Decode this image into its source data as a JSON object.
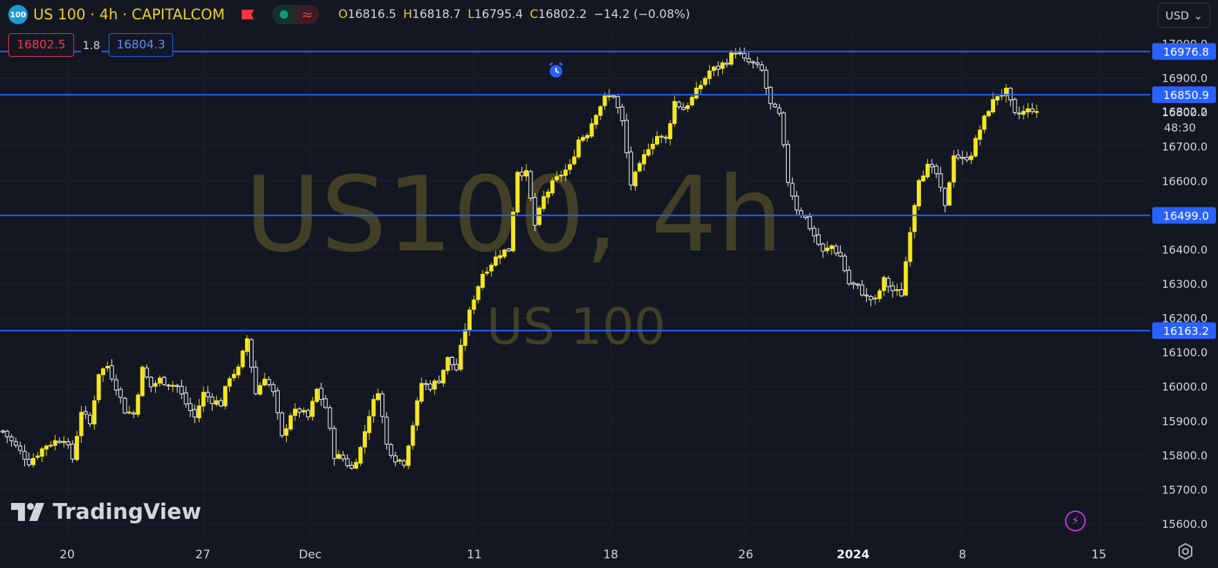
{
  "header": {
    "symbol_badge": "100",
    "title": "US 100 · 4h · CAPITALCOM",
    "ohlc": {
      "o_label": "O",
      "o": "16816.5",
      "h_label": "H",
      "h": "16818.7",
      "l_label": "L",
      "l": "16795.4",
      "c_label": "C",
      "c": "16802.2",
      "change": "−14.2 (−0.08%)"
    },
    "currency": "USD"
  },
  "quote": {
    "bid": "16802.5",
    "spread": "1.8",
    "ask": "16804.3"
  },
  "watermark": {
    "line1": "US100, 4h",
    "line2": "US 100"
  },
  "branding": {
    "logo_text": "TradingView"
  },
  "price_badge": {
    "price": "16802.2",
    "countdown": "48:30"
  },
  "colors": {
    "background": "#131722",
    "bull": "#f5e71f",
    "bear": "#ffffff",
    "hline": "#2962ff",
    "text": "#d1d4dc",
    "grid": "#1e222d"
  },
  "chart_data": {
    "type": "candlestick",
    "title": "US 100",
    "timeframe": "4h",
    "ylim": [
      15550,
      17050
    ],
    "y_ticks": [
      "15600.0",
      "15700.0",
      "15800.0",
      "15900.0",
      "16000.0",
      "16100.0",
      "16200.0",
      "16300.0",
      "16400.0",
      "16500.0",
      "16600.0",
      "16700.0",
      "16800.0",
      "16900.0",
      "17000.0"
    ],
    "x_ticks": [
      {
        "label": "20",
        "bold": false
      },
      {
        "label": "27",
        "bold": false
      },
      {
        "label": "Dec",
        "bold": false
      },
      {
        "label": "11",
        "bold": false
      },
      {
        "label": "18",
        "bold": false
      },
      {
        "label": "26",
        "bold": false
      },
      {
        "label": "2024",
        "bold": true
      },
      {
        "label": "8",
        "bold": false
      },
      {
        "label": "15",
        "bold": false
      }
    ],
    "horizontal_lines": [
      {
        "price": 16976.8,
        "label": "16976.8"
      },
      {
        "price": 16850.9,
        "label": "16850.9"
      },
      {
        "price": 16499.0,
        "label": "16499.0"
      },
      {
        "price": 16163.2,
        "label": "16163.2"
      }
    ],
    "last_price": 16802.2,
    "price_path": [
      [
        0,
        15870
      ],
      [
        6,
        15780
      ],
      [
        10,
        15830
      ],
      [
        14,
        15850
      ],
      [
        16,
        15790
      ],
      [
        18,
        15930
      ],
      [
        20,
        15890
      ],
      [
        22,
        16040
      ],
      [
        24,
        16060
      ],
      [
        26,
        16000
      ],
      [
        28,
        15930
      ],
      [
        30,
        15920
      ],
      [
        32,
        16050
      ],
      [
        34,
        16000
      ],
      [
        36,
        16020
      ],
      [
        38,
        16010
      ],
      [
        40,
        16000
      ],
      [
        42,
        15950
      ],
      [
        44,
        15910
      ],
      [
        46,
        15980
      ],
      [
        48,
        15960
      ],
      [
        50,
        15950
      ],
      [
        52,
        16030
      ],
      [
        54,
        16050
      ],
      [
        56,
        16140
      ],
      [
        58,
        15980
      ],
      [
        60,
        16030
      ],
      [
        62,
        15980
      ],
      [
        64,
        15850
      ],
      [
        66,
        15920
      ],
      [
        68,
        15930
      ],
      [
        70,
        15910
      ],
      [
        72,
        15990
      ],
      [
        74,
        15940
      ],
      [
        76,
        15800
      ],
      [
        78,
        15790
      ],
      [
        80,
        15760
      ],
      [
        82,
        15820
      ],
      [
        84,
        15920
      ],
      [
        86,
        15990
      ],
      [
        88,
        15830
      ],
      [
        90,
        15790
      ],
      [
        92,
        15780
      ],
      [
        94,
        15890
      ],
      [
        96,
        16010
      ],
      [
        98,
        16000
      ],
      [
        100,
        16020
      ],
      [
        102,
        16080
      ],
      [
        104,
        16050
      ],
      [
        106,
        16170
      ],
      [
        108,
        16260
      ],
      [
        110,
        16330
      ],
      [
        112,
        16360
      ],
      [
        114,
        16390
      ],
      [
        116,
        16400
      ],
      [
        118,
        16630
      ],
      [
        120,
        16620
      ],
      [
        122,
        16470
      ],
      [
        124,
        16550
      ],
      [
        126,
        16590
      ],
      [
        128,
        16620
      ],
      [
        130,
        16640
      ],
      [
        132,
        16720
      ],
      [
        134,
        16740
      ],
      [
        136,
        16800
      ],
      [
        138,
        16840
      ],
      [
        140,
        16850
      ],
      [
        142,
        16770
      ],
      [
        144,
        16590
      ],
      [
        146,
        16640
      ],
      [
        148,
        16700
      ],
      [
        150,
        16730
      ],
      [
        152,
        16720
      ],
      [
        154,
        16830
      ],
      [
        156,
        16810
      ],
      [
        158,
        16840
      ],
      [
        160,
        16880
      ],
      [
        162,
        16920
      ],
      [
        164,
        16930
      ],
      [
        166,
        16950
      ],
      [
        168,
        16980
      ],
      [
        170,
        16950
      ],
      [
        172,
        16940
      ],
      [
        174,
        16920
      ],
      [
        176,
        16820
      ],
      [
        178,
        16790
      ],
      [
        180,
        16600
      ],
      [
        182,
        16520
      ],
      [
        184,
        16490
      ],
      [
        186,
        16440
      ],
      [
        188,
        16390
      ],
      [
        190,
        16410
      ],
      [
        192,
        16380
      ],
      [
        194,
        16300
      ],
      [
        196,
        16290
      ],
      [
        198,
        16260
      ],
      [
        200,
        16250
      ],
      [
        202,
        16310
      ],
      [
        204,
        16280
      ],
      [
        206,
        16270
      ],
      [
        208,
        16460
      ],
      [
        210,
        16610
      ],
      [
        212,
        16640
      ],
      [
        214,
        16620
      ],
      [
        216,
        16520
      ],
      [
        218,
        16680
      ],
      [
        220,
        16660
      ],
      [
        222,
        16680
      ],
      [
        224,
        16750
      ],
      [
        226,
        16810
      ],
      [
        228,
        16850
      ],
      [
        230,
        16860
      ],
      [
        232,
        16790
      ],
      [
        234,
        16800
      ],
      [
        236,
        16810
      ],
      [
        237,
        16802
      ]
    ]
  }
}
